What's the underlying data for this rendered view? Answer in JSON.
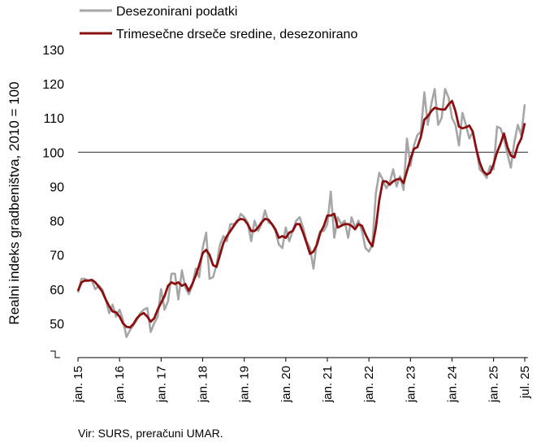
{
  "chart_data": {
    "type": "line",
    "title": "",
    "ylabel": "Realni indeks gradbeništva, 2010 = 100",
    "xlabel": "",
    "ylim": [
      40,
      130
    ],
    "yticks": [
      "130",
      "120",
      "110",
      "100",
      "90",
      "80",
      "70",
      "60",
      "50"
    ],
    "reference_line": 100,
    "x_tick_labels": [
      "jan. 15",
      "jan. 16",
      "jan. 17",
      "jan. 18",
      "jan. 19",
      "jan. 20",
      "jan. 21",
      "jan. 22",
      "jan. 23",
      "jan. 24",
      "jan. 25",
      "jul. 25"
    ],
    "legend_position": "top-left",
    "colors": {
      "raw": "#a6a6a6",
      "smoothed": "#8b0f0f",
      "reference": "#404040"
    },
    "series": [
      {
        "name": "Desezonirani podatki",
        "values": [
          59,
          63,
          63,
          62.5,
          62.5,
          60,
          61,
          60,
          57,
          53,
          55.5,
          52,
          54,
          51,
          46,
          48,
          49.5,
          51,
          53,
          54,
          54.5,
          47.5,
          50,
          52,
          60,
          54,
          56.5,
          64.5,
          64.5,
          57,
          65.5,
          60.5,
          58.5,
          61,
          66,
          63.5,
          72,
          76.5,
          63,
          63.5,
          67,
          73,
          75.5,
          74,
          79,
          79,
          79.5,
          82,
          81,
          79.5,
          74,
          80,
          77,
          79,
          83,
          79.5,
          79,
          77,
          73,
          72,
          78,
          74,
          77,
          80,
          81,
          78,
          74,
          72,
          66,
          74,
          77,
          77,
          79,
          88.5,
          75,
          81,
          79,
          80,
          75,
          81,
          78,
          80,
          77,
          72,
          71,
          73,
          88,
          94,
          92,
          89.5,
          91,
          95,
          90,
          93,
          89,
          104,
          96,
          102,
          105,
          106,
          117.5,
          108,
          114,
          118.5,
          108,
          110,
          118.5,
          116,
          110,
          108,
          102,
          111.5,
          108,
          104,
          106,
          101,
          95,
          94,
          92.5,
          96,
          95,
          107.5,
          107,
          104,
          99.5,
          95.5,
          103,
          108,
          105,
          114
        ]
      },
      {
        "name": "Trimesečne drseče sredine, desezonirano",
        "values": [
          59.5,
          62,
          62.5,
          62.5,
          62.7,
          62,
          60.7,
          59.3,
          57,
          55,
          53.5,
          53.2,
          52,
          50,
          49,
          48.8,
          49.8,
          51.5,
          52.5,
          53,
          52,
          50.5,
          51.5,
          54,
          56,
          58,
          61,
          62,
          61.5,
          62,
          61,
          61.5,
          59.5,
          61.5,
          64,
          67,
          70.5,
          71.5,
          70,
          67,
          66.5,
          70,
          73.5,
          75.5,
          77,
          78.5,
          80,
          80.5,
          80.3,
          79,
          77,
          77,
          78,
          79.5,
          80.5,
          80.3,
          79,
          77.5,
          75,
          75.5,
          75,
          76.5,
          77,
          79,
          79,
          76.5,
          73.5,
          70.3,
          71,
          73,
          76.5,
          78.5,
          81.5,
          81.5,
          82,
          78,
          78.5,
          79,
          79,
          78.5,
          77.5,
          79,
          78.5,
          76,
          74,
          72.5,
          78,
          86,
          91.5,
          91.5,
          90.5,
          91.5,
          92,
          92.3,
          91,
          94.5,
          98,
          101,
          101.5,
          104.5,
          109.5,
          110.5,
          112,
          113,
          112.7,
          112.5,
          112.5,
          114,
          115,
          112,
          107.5,
          107,
          107.3,
          107.8,
          106,
          101,
          97,
          94.5,
          93.5,
          94,
          96.5,
          100,
          102.5,
          105.5,
          101.5,
          99,
          98.5,
          102,
          104,
          108.5
        ]
      }
    ]
  },
  "source": "Vir: SURS, preračuni UMAR."
}
